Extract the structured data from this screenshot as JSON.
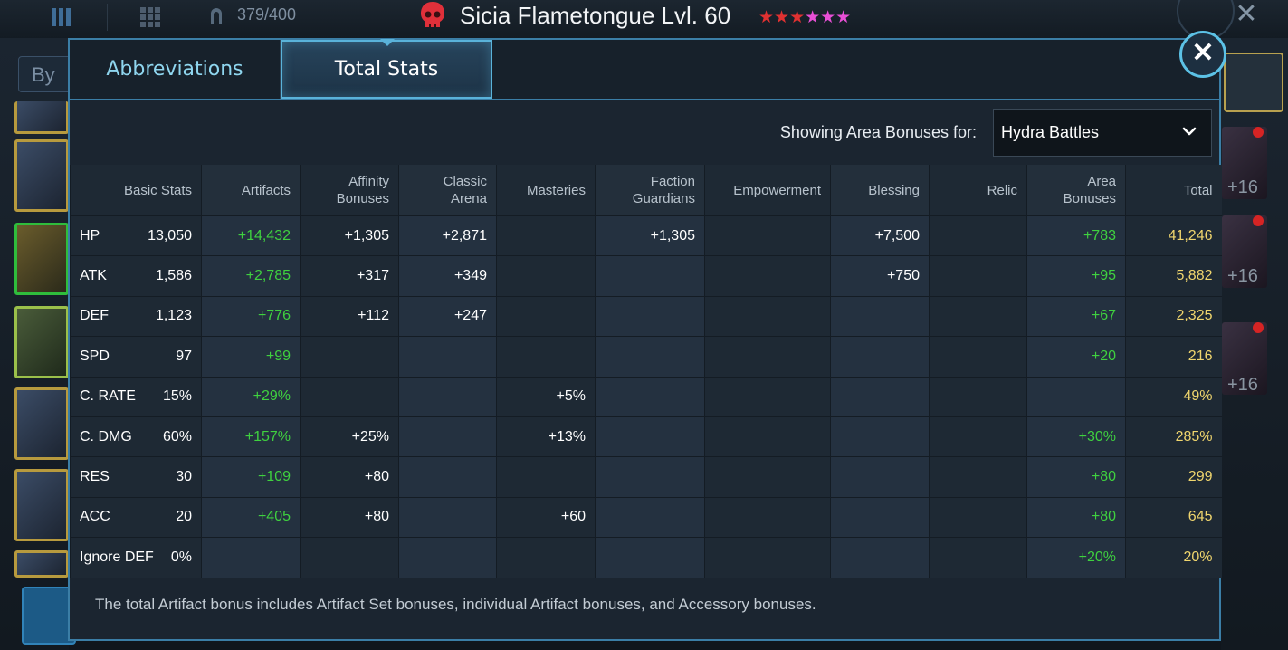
{
  "topbar": {
    "energy": "379/400",
    "hero_title": "Sicia Flametongue Lvl. 60",
    "stars_red": "★★★",
    "stars_pink": "★★★"
  },
  "roster": {
    "filter_label": "By F",
    "right_levels": [
      "+16",
      "+16",
      "+16"
    ]
  },
  "tabs": {
    "abbreviations": "Abbreviations",
    "total_stats": "Total Stats"
  },
  "area_filter": {
    "label": "Showing Area Bonuses for:",
    "selected": "Hydra Battles"
  },
  "columns": [
    "Basic Stats",
    "Artifacts",
    "Affinity Bonuses",
    "Classic Arena",
    "Masteries",
    "Faction Guardians",
    "Empowerment",
    "Blessing",
    "Relic",
    "Area Bonuses",
    "Total"
  ],
  "rows": [
    {
      "stat": "HP",
      "basic": "13,050",
      "artifacts": "+14,432",
      "affinity": "+1,305",
      "arena": "+2,871",
      "masteries": "",
      "faction": "+1,305",
      "empowerment": "",
      "blessing": "+7,500",
      "relic": "",
      "area": "+783",
      "total": "41,246"
    },
    {
      "stat": "ATK",
      "basic": "1,586",
      "artifacts": "+2,785",
      "affinity": "+317",
      "arena": "+349",
      "masteries": "",
      "faction": "",
      "empowerment": "",
      "blessing": "+750",
      "relic": "",
      "area": "+95",
      "total": "5,882"
    },
    {
      "stat": "DEF",
      "basic": "1,123",
      "artifacts": "+776",
      "affinity": "+112",
      "arena": "+247",
      "masteries": "",
      "faction": "",
      "empowerment": "",
      "blessing": "",
      "relic": "",
      "area": "+67",
      "total": "2,325"
    },
    {
      "stat": "SPD",
      "basic": "97",
      "artifacts": "+99",
      "affinity": "",
      "arena": "",
      "masteries": "",
      "faction": "",
      "empowerment": "",
      "blessing": "",
      "relic": "",
      "area": "+20",
      "total": "216"
    },
    {
      "stat": "C. RATE",
      "basic": "15%",
      "artifacts": "+29%",
      "affinity": "",
      "arena": "",
      "masteries": "+5%",
      "faction": "",
      "empowerment": "",
      "blessing": "",
      "relic": "",
      "area": "",
      "total": "49%"
    },
    {
      "stat": "C. DMG",
      "basic": "60%",
      "artifacts": "+157%",
      "affinity": "+25%",
      "arena": "",
      "masteries": "+13%",
      "faction": "",
      "empowerment": "",
      "blessing": "",
      "relic": "",
      "area": "+30%",
      "total": "285%"
    },
    {
      "stat": "RES",
      "basic": "30",
      "artifacts": "+109",
      "affinity": "+80",
      "arena": "",
      "masteries": "",
      "faction": "",
      "empowerment": "",
      "blessing": "",
      "relic": "",
      "area": "+80",
      "total": "299"
    },
    {
      "stat": "ACC",
      "basic": "20",
      "artifacts": "+405",
      "affinity": "+80",
      "arena": "",
      "masteries": "+60",
      "faction": "",
      "empowerment": "",
      "blessing": "",
      "relic": "",
      "area": "+80",
      "total": "645"
    },
    {
      "stat": "Ignore DEF",
      "basic": "0%",
      "artifacts": "",
      "affinity": "",
      "arena": "",
      "masteries": "",
      "faction": "",
      "empowerment": "",
      "blessing": "",
      "relic": "",
      "area": "+20%",
      "total": "20%"
    }
  ],
  "footnote": "The total Artifact bonus includes Artifact Set bonuses, individual Artifact bonuses, and Accessory bonuses.",
  "colors": {
    "accent": "#5ab3da",
    "bonus_green": "#3fd13f",
    "total_gold": "#f0d66e",
    "skull_red": "#e0303a"
  },
  "icons": [
    "menu-icon",
    "grid-icon",
    "energy-icon",
    "skull-icon",
    "close-icon",
    "chevron-down-icon"
  ]
}
